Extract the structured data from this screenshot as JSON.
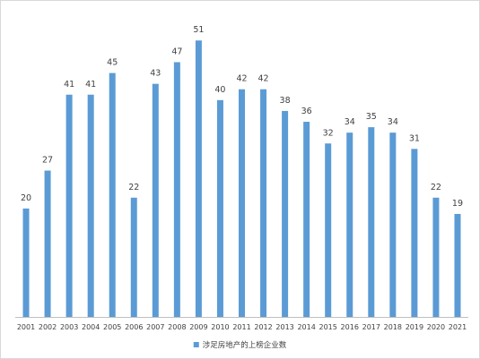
{
  "chart_data": {
    "type": "bar",
    "title": "",
    "xlabel": "",
    "ylabel": "",
    "categories": [
      "2001",
      "2002",
      "2003",
      "2004",
      "2005",
      "2006",
      "2007",
      "2008",
      "2009",
      "2010",
      "2011",
      "2012",
      "2013",
      "2014",
      "2015",
      "2016",
      "2017",
      "2018",
      "2019",
      "2020",
      "2021"
    ],
    "series": [
      {
        "name": "涉足房地产的上榜企业数",
        "values": [
          20,
          27,
          41,
          41,
          45,
          22,
          43,
          47,
          51,
          40,
          42,
          42,
          38,
          36,
          32,
          34,
          35,
          34,
          31,
          22,
          19
        ],
        "color": "#5b9bd5"
      }
    ],
    "ylim": [
      0,
      55
    ],
    "grid": false,
    "data_labels": true,
    "legend_position": "bottom"
  }
}
